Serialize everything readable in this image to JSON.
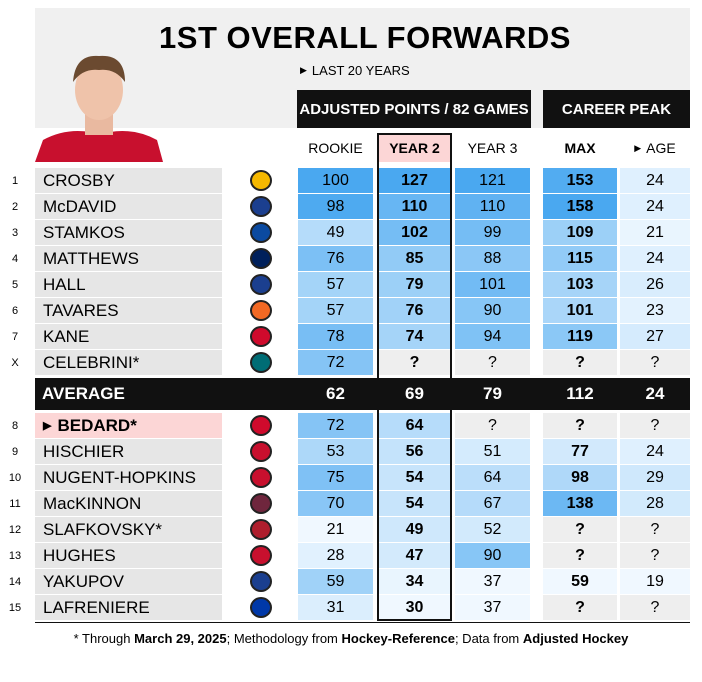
{
  "header": {
    "title": "1ST OVERALL FORWARDS",
    "subtitle": "LAST 20 YEARS"
  },
  "groups": [
    "ADJUSTED POINTS / 82 GAMES",
    "CAREER PEAK"
  ],
  "columns": [
    "ROOKIE",
    "YEAR 2",
    "YEAR 3",
    "MAX",
    "AGE"
  ],
  "top_rows": [
    {
      "rank": 1,
      "name": "CROSBY",
      "values": [
        100,
        127,
        121,
        153,
        24
      ]
    },
    {
      "rank": 2,
      "name": "McDAVID",
      "values": [
        98,
        110,
        110,
        158,
        24
      ]
    },
    {
      "rank": 3,
      "name": "STAMKOS",
      "values": [
        49,
        102,
        99,
        109,
        21
      ]
    },
    {
      "rank": 4,
      "name": "MATTHEWS",
      "values": [
        76,
        85,
        88,
        115,
        24
      ]
    },
    {
      "rank": 5,
      "name": "HALL",
      "values": [
        57,
        79,
        101,
        103,
        26
      ]
    },
    {
      "rank": 6,
      "name": "TAVARES",
      "values": [
        57,
        76,
        90,
        101,
        23
      ]
    },
    {
      "rank": 7,
      "name": "KANE",
      "values": [
        78,
        74,
        94,
        119,
        27
      ]
    },
    {
      "rank": "X",
      "name": "CELEBRINI*",
      "values": [
        72,
        "?",
        "?",
        "?",
        "?"
      ]
    }
  ],
  "average": {
    "label": "AVERAGE",
    "values": [
      62,
      69,
      79,
      112,
      24
    ]
  },
  "bottom_rows": [
    {
      "rank": 8,
      "name": "BEDARD*",
      "highlight": true,
      "values": [
        72,
        64,
        "?",
        "?",
        "?"
      ]
    },
    {
      "rank": 9,
      "name": "HISCHIER",
      "values": [
        53,
        56,
        51,
        77,
        24
      ]
    },
    {
      "rank": 10,
      "name": "NUGENT-HOPKINS",
      "values": [
        75,
        54,
        64,
        98,
        29
      ]
    },
    {
      "rank": 11,
      "name": "MacKINNON",
      "values": [
        70,
        54,
        67,
        138,
        28
      ]
    },
    {
      "rank": 12,
      "name": "SLAFKOVSKY*",
      "values": [
        21,
        49,
        52,
        "?",
        "?"
      ]
    },
    {
      "rank": 13,
      "name": "HUGHES",
      "values": [
        28,
        47,
        90,
        "?",
        "?"
      ]
    },
    {
      "rank": 14,
      "name": "YAKUPOV",
      "values": [
        59,
        34,
        37,
        59,
        19
      ]
    },
    {
      "rank": 15,
      "name": "LAFRENIERE",
      "values": [
        31,
        30,
        37,
        "?",
        "?"
      ]
    }
  ],
  "footnote": [
    "* Through ",
    "March 29, 2025",
    "; Methodology from ",
    "Hockey-Reference",
    "; Data from ",
    "Adjusted Hockey"
  ]
}
